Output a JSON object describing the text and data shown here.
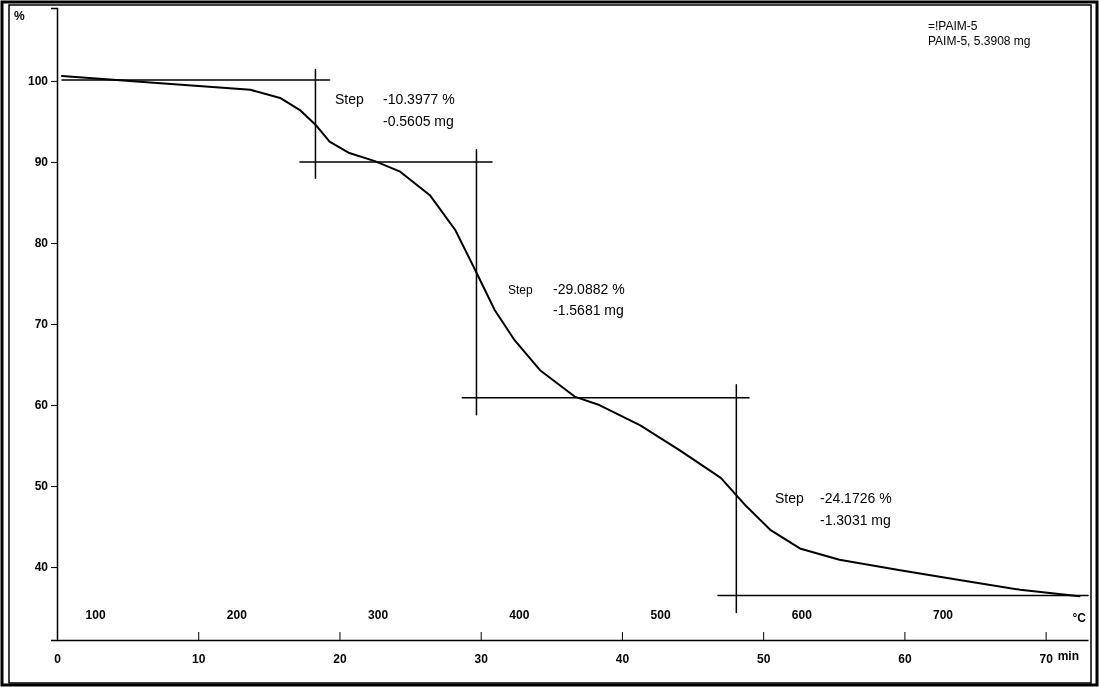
{
  "chart_data": {
    "type": "line",
    "xlabel": "min",
    "ylabel": "%",
    "x2label": "°C",
    "xlim": [
      0,
      73
    ],
    "ylim": [
      31,
      109
    ],
    "x2lim": [
      73,
      803
    ],
    "xticks": [
      0,
      10,
      20,
      30,
      40,
      50,
      60,
      70
    ],
    "x2ticks": [
      100,
      200,
      300,
      400,
      500,
      600,
      700
    ],
    "yticks": [
      40,
      50,
      60,
      70,
      80,
      90,
      100
    ],
    "grid": false,
    "line_style": "solid",
    "series": [
      {
        "color": "#000000",
        "x": [
          0.35,
          6.6,
          13.7,
          15.8,
          17.2,
          18.3,
          19.3,
          20.7,
          22.5,
          24.3,
          26.4,
          28.2,
          29.6,
          31.0,
          32.4,
          34.2,
          36.7,
          38.4,
          41.3,
          44.1,
          47.0,
          48.7,
          50.5,
          52.6,
          55.4,
          59.7,
          63.9,
          68.2,
          72.4
        ],
        "values": [
          100.6,
          99.8,
          98.9,
          97.9,
          96.4,
          94.6,
          92.5,
          91.1,
          90.1,
          88.8,
          85.9,
          81.6,
          76.7,
          71.7,
          68.0,
          64.3,
          61.0,
          60.0,
          57.5,
          54.4,
          51.0,
          47.7,
          44.6,
          42.3,
          40.9,
          39.6,
          38.4,
          37.2,
          36.4
        ]
      },
      {
        "color": "#000000",
        "x": [
          0.35,
          19.3
        ],
        "values": [
          100.1,
          100.1
        ]
      },
      {
        "color": "#000000",
        "x": [
          18.3,
          18.3
        ],
        "values": [
          101.4,
          88.0
        ]
      },
      {
        "color": "#000000",
        "x": [
          17.2,
          30.8
        ],
        "values": [
          90.0,
          90.0
        ]
      },
      {
        "color": "#000000",
        "x": [
          29.7,
          29.7
        ],
        "values": [
          91.5,
          58.8
        ]
      },
      {
        "color": "#000000",
        "x": [
          28.7,
          49.0
        ],
        "values": [
          60.9,
          60.9
        ]
      },
      {
        "color": "#000000",
        "x": [
          48.1,
          48.1
        ],
        "values": [
          62.5,
          34.4
        ]
      },
      {
        "color": "#000000",
        "x": [
          46.8,
          73.0
        ],
        "values": [
          36.5,
          36.5
        ]
      }
    ],
    "annotations": [
      "Step",
      "-10.3977 %",
      "-0.5605 mg",
      "Step",
      "-29.0882 %",
      "-1.5681 mg",
      "Step",
      "-24.1726 %",
      "-1.3031 mg",
      "=!PAIM-5",
      "PAIM-5, 5.3908 mg"
    ]
  }
}
